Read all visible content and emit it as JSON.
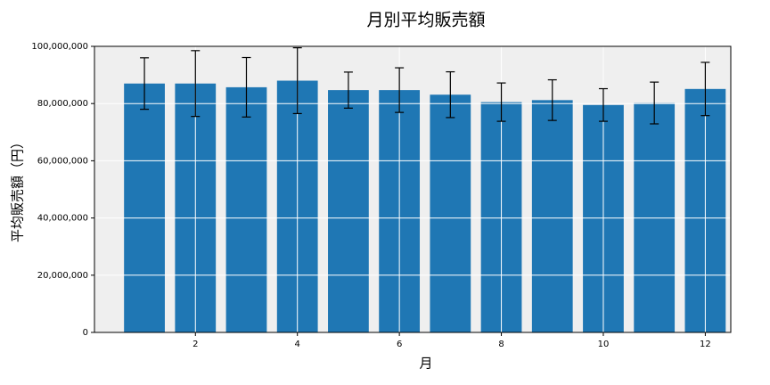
{
  "chart_data": {
    "type": "bar",
    "title": "月別平均販売額",
    "xlabel": "月",
    "ylabel": "平均販売額（円）",
    "x": [
      1,
      2,
      3,
      4,
      5,
      6,
      7,
      8,
      9,
      10,
      11,
      12
    ],
    "values": [
      87000000,
      87000000,
      85700000,
      88000000,
      84700000,
      84700000,
      83100000,
      80500000,
      81200000,
      79500000,
      80200000,
      85100000
    ],
    "errors": [
      9000000,
      11500000,
      10400000,
      11500000,
      6300000,
      7800000,
      8000000,
      6700000,
      7100000,
      5700000,
      7300000,
      9300000
    ],
    "color": "#1f77b4",
    "error_color": "#000000",
    "xlim": [
      0.02,
      12.5
    ],
    "xticks": [
      2,
      4,
      6,
      8,
      10,
      12
    ],
    "ylim": [
      0,
      100000000
    ],
    "yticks": [
      0,
      {
        "value": 20000000,
        "label": "20,000,000"
      },
      {
        "value": 40000000,
        "label": "40,000,000"
      },
      {
        "value": 60000000,
        "label": "60,000,000"
      },
      {
        "value": 80000000,
        "label": "80,000,000"
      },
      {
        "value": 100000000,
        "label": "100,000,000"
      }
    ],
    "grid": true,
    "background": "#efefef"
  }
}
